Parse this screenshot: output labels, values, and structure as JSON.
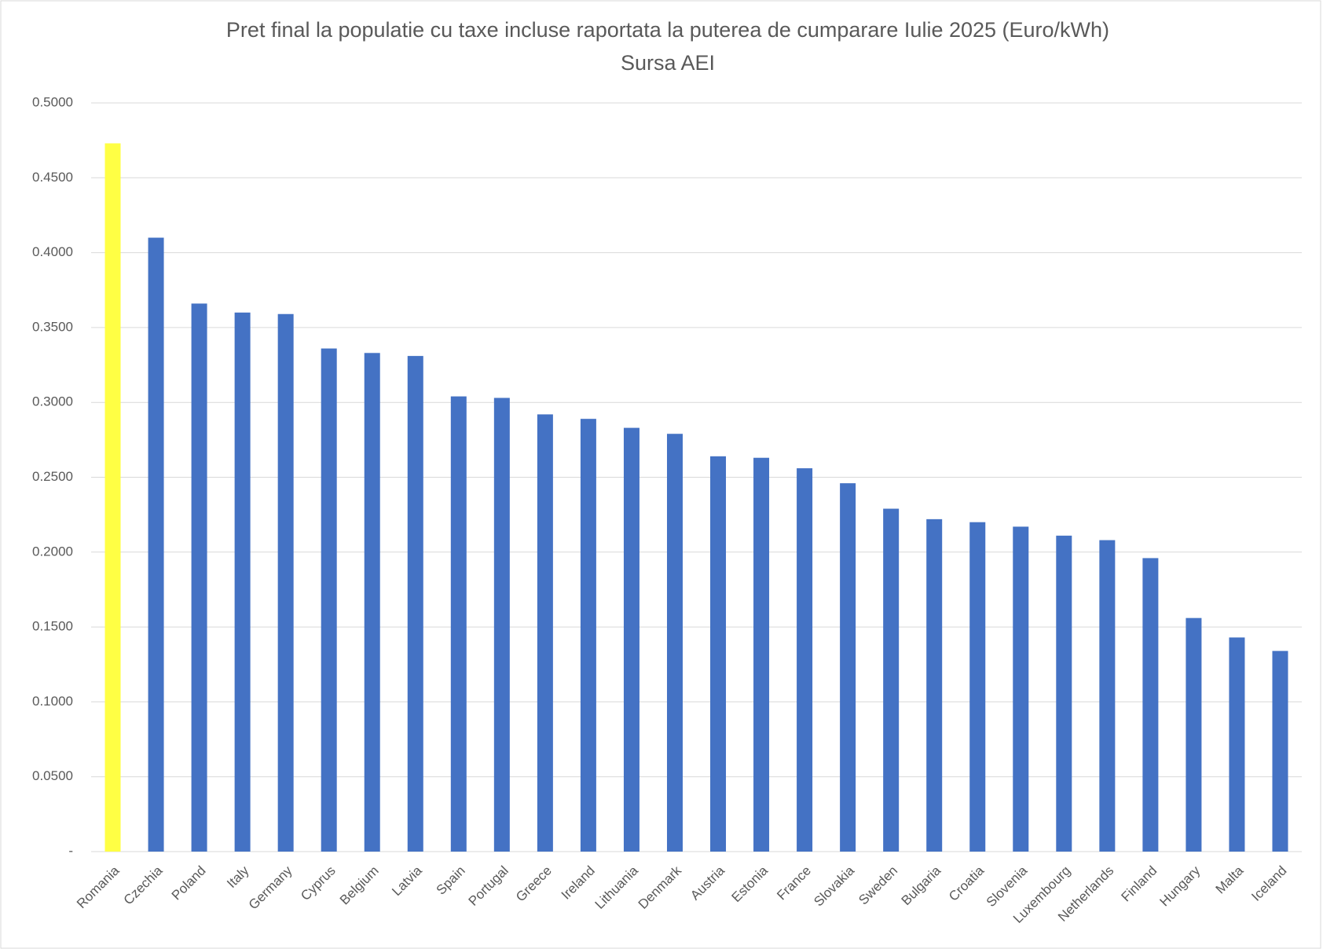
{
  "chart_data": {
    "type": "bar",
    "title": "Pret final la populatie cu taxe incluse raportata la puterea de cumparare Iulie 2025 (Euro/kWh)",
    "subtitle": "Sursa AEI",
    "categories": [
      "Romania",
      "Czechia",
      "Poland",
      "Italy",
      "Germany",
      "Cyprus",
      "Belgium",
      "Latvia",
      "Spain",
      "Portugal",
      "Greece",
      "Ireland",
      "Lithuania",
      "Denmark",
      "Austria",
      "Estonia",
      "France",
      "Slovakia",
      "Sweden",
      "Bulgaria",
      "Croatia",
      "Slovenia",
      "Luxembourg",
      "Netherlands",
      "Finland",
      "Hungary",
      "Malta",
      "Iceland"
    ],
    "values": [
      0.473,
      0.41,
      0.366,
      0.36,
      0.359,
      0.336,
      0.333,
      0.331,
      0.304,
      0.303,
      0.292,
      0.289,
      0.283,
      0.279,
      0.264,
      0.263,
      0.256,
      0.246,
      0.229,
      0.222,
      0.22,
      0.217,
      0.211,
      0.208,
      0.196,
      0.156,
      0.143,
      0.134
    ],
    "colors": [
      "#ffff44",
      "#4472c4",
      "#4472c4",
      "#4472c4",
      "#4472c4",
      "#4472c4",
      "#4472c4",
      "#4472c4",
      "#4472c4",
      "#4472c4",
      "#4472c4",
      "#4472c4",
      "#4472c4",
      "#4472c4",
      "#4472c4",
      "#4472c4",
      "#4472c4",
      "#4472c4",
      "#4472c4",
      "#4472c4",
      "#4472c4",
      "#4472c4",
      "#4472c4",
      "#4472c4",
      "#4472c4",
      "#4472c4",
      "#4472c4",
      "#4472c4"
    ],
    "ylim": [
      0,
      0.5
    ],
    "yticks": [
      {
        "value": 0,
        "label": "-"
      },
      {
        "value": 0.05,
        "label": "0.0500"
      },
      {
        "value": 0.1,
        "label": "0.1000"
      },
      {
        "value": 0.15,
        "label": "0.1500"
      },
      {
        "value": 0.2,
        "label": "0.2000"
      },
      {
        "value": 0.25,
        "label": "0.2500"
      },
      {
        "value": 0.3,
        "label": "0.3000"
      },
      {
        "value": 0.35,
        "label": "0.3500"
      },
      {
        "value": 0.4,
        "label": "0.4000"
      },
      {
        "value": 0.45,
        "label": "0.4500"
      },
      {
        "value": 0.5,
        "label": "0.5000"
      }
    ],
    "grid": true
  }
}
